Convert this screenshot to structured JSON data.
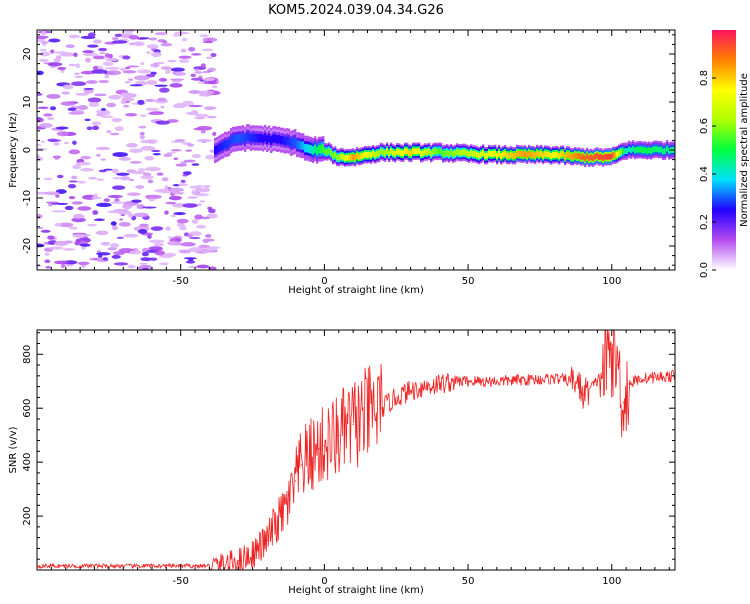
{
  "title": "KOM5.2024.039.04.34.G26",
  "chart_data": [
    {
      "type": "heatmap",
      "xlabel": "Height of straight line (km)",
      "ylabel": "Frequency (Hz)",
      "xlim": [
        -100,
        122
      ],
      "ylim": [
        -25,
        25
      ],
      "xticks": [
        -50,
        0,
        50,
        100
      ],
      "yticks": [
        -20,
        -10,
        0,
        10,
        20
      ],
      "colorbar": {
        "label": "Normalized spectral amplitude",
        "range": [
          0,
          1
        ],
        "ticks": [
          0.0,
          0.2,
          0.4,
          0.6,
          0.8
        ],
        "tick_labels": [
          "0.0",
          "0.2",
          "0.4",
          "0.6",
          "0.8"
        ],
        "colormap": [
          "#ffffff",
          "#b44cf0",
          "#2200ff",
          "#00e0ff",
          "#00ff40",
          "#b0ff00",
          "#ffff00",
          "#ff8000",
          "#ff1460"
        ]
      },
      "ridge": {
        "x": [
          -38,
          -30,
          -22,
          -15,
          -10,
          -5,
          0,
          5,
          10,
          20,
          30,
          40,
          50,
          60,
          70,
          80,
          90,
          100,
          105,
          110,
          122
        ],
        "frequency": [
          0,
          2.5,
          2.5,
          2,
          1.5,
          0,
          0,
          -1.5,
          -1.5,
          -0.5,
          -0.5,
          -0.5,
          -0.8,
          -1,
          -1,
          -1,
          -1.5,
          -1.5,
          0,
          0,
          0
        ],
        "amplitude": [
          0.25,
          0.3,
          0.25,
          0.25,
          0.3,
          0.4,
          0.55,
          0.6,
          0.85,
          0.6,
          0.8,
          0.55,
          0.65,
          0.75,
          0.85,
          0.75,
          0.9,
          0.95,
          0.4,
          0.5,
          0.45
        ]
      }
    },
    {
      "type": "line",
      "xlabel": "Height of straight line (km)",
      "ylabel": "SNR (v/v)",
      "xlim": [
        -100,
        122
      ],
      "ylim": [
        0,
        890
      ],
      "xticks": [
        -50,
        0,
        50,
        100
      ],
      "yticks": [
        200,
        400,
        600,
        800
      ],
      "color": "#ee2222",
      "x": [
        -100,
        -90,
        -80,
        -70,
        -60,
        -50,
        -40,
        -35,
        -30,
        -25,
        -20,
        -18,
        -15,
        -12,
        -10,
        -8,
        -5,
        -2,
        0,
        5,
        10,
        15,
        20,
        25,
        30,
        35,
        40,
        45,
        50,
        60,
        70,
        80,
        88,
        90,
        95,
        98,
        100,
        102,
        104,
        106,
        110,
        115,
        122
      ],
      "y": [
        15,
        15,
        15,
        15,
        15,
        15,
        15,
        20,
        35,
        60,
        110,
        150,
        200,
        260,
        330,
        390,
        420,
        450,
        460,
        500,
        540,
        575,
        600,
        640,
        665,
        680,
        690,
        700,
        700,
        700,
        705,
        710,
        700,
        650,
        700,
        760,
        820,
        760,
        620,
        690,
        710,
        715,
        720
      ]
    }
  ]
}
